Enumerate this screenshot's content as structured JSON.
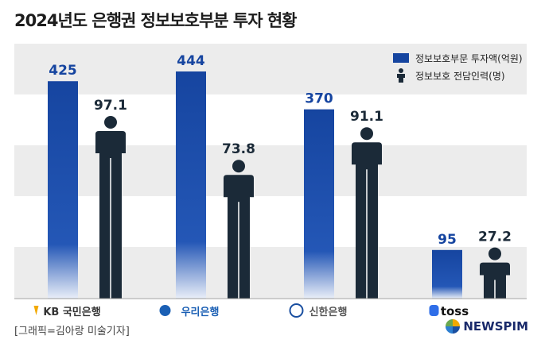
{
  "title": "2024년도 은행권 정보보호부분 투자 현황",
  "footer": {
    "credit": "[그래픽=김아랑 미술기자]",
    "brand": "NEWSPIM"
  },
  "colors": {
    "bar": "#1645a0",
    "person": "#1b2a38",
    "band": "#ececec"
  },
  "chart_data": {
    "type": "bar",
    "categories": [
      "KB 국민은행",
      "우리은행",
      "신한은행",
      "toss"
    ],
    "series": [
      {
        "name": "정보보호부문 투자액(억원)",
        "values": [
          425,
          444,
          370,
          95
        ],
        "mark": "bar"
      },
      {
        "name": "정보보호 전담인력(명)",
        "values": [
          97.1,
          73.8,
          91.1,
          27.2
        ],
        "mark": "person-icon"
      }
    ],
    "data_labels": {
      "investment": [
        "425",
        "444",
        "370",
        "95"
      ],
      "staff": [
        "97.1",
        "73.8",
        "91.1",
        "27.2"
      ]
    },
    "title": "2024년도 은행권 정보보호부분 투자 현황",
    "legend_position": "top-right",
    "grid": "horizontal bands"
  }
}
